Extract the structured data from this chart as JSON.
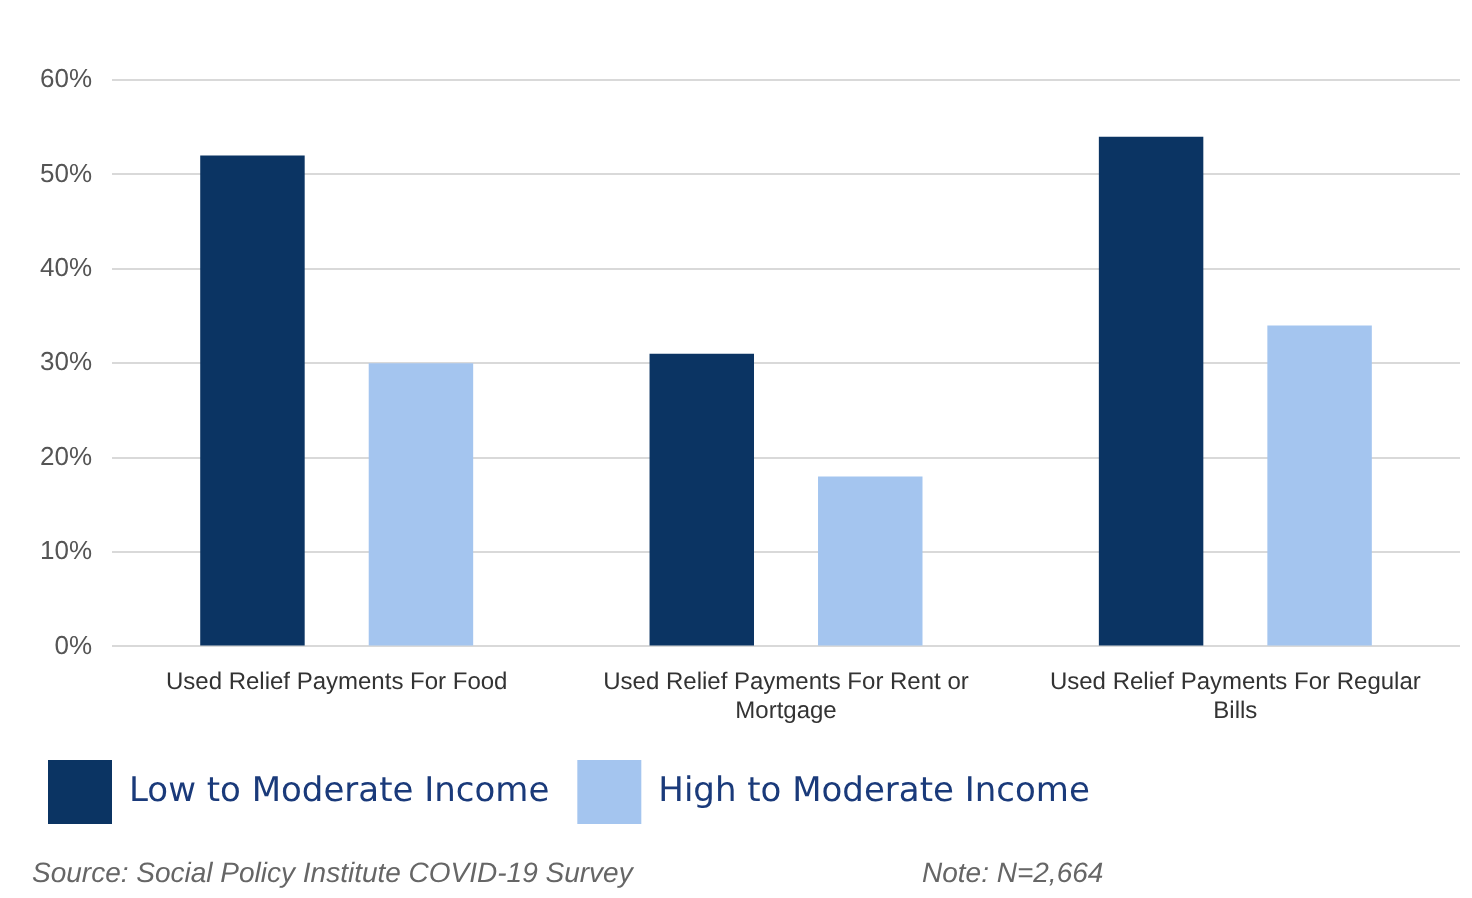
{
  "chart_data": {
    "type": "bar",
    "categories": [
      "Used Relief Payments For Food",
      "Used Relief Payments For Rent or Mortgage",
      "Used Relief Payments For Regular Bills"
    ],
    "series": [
      {
        "name": "Low to Moderate Income",
        "color": "#0b3463",
        "values": [
          52,
          31,
          54
        ]
      },
      {
        "name": "High to Moderate Income",
        "color": "#a4c5ef",
        "values": [
          30,
          18,
          34
        ]
      }
    ],
    "ylim": [
      0,
      60
    ],
    "yticks": [
      {
        "value": 0,
        "label": "0%"
      },
      {
        "value": 10,
        "label": "10%"
      },
      {
        "value": 20,
        "label": "20%"
      },
      {
        "value": 30,
        "label": "30%"
      },
      {
        "value": 40,
        "label": "40%"
      },
      {
        "value": 50,
        "label": "50%"
      },
      {
        "value": 60,
        "label": "60%"
      }
    ],
    "grid": "y",
    "legend": "bottom",
    "annotations": [
      "Source: Social Policy Institute COVID-19 Survey",
      "Note: N=2,664"
    ]
  }
}
